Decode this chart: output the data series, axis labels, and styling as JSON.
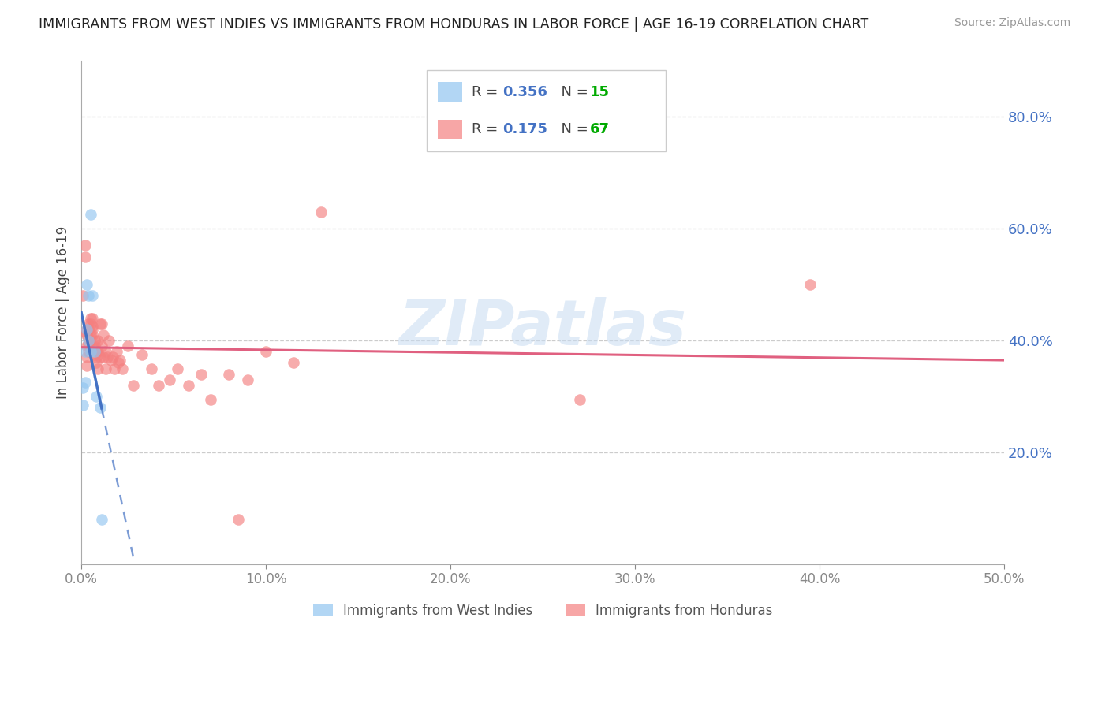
{
  "title": "IMMIGRANTS FROM WEST INDIES VS IMMIGRANTS FROM HONDURAS IN LABOR FORCE | AGE 16-19 CORRELATION CHART",
  "source": "Source: ZipAtlas.com",
  "ylabel": "In Labor Force | Age 16-19",
  "xlim": [
    0.0,
    0.5
  ],
  "ylim": [
    0.0,
    0.9
  ],
  "xticks": [
    0.0,
    0.1,
    0.2,
    0.3,
    0.4,
    0.5
  ],
  "yticks_right": [
    0.2,
    0.4,
    0.6,
    0.8
  ],
  "r_west_indies": 0.356,
  "n_west_indies": 15,
  "r_honduras": 0.175,
  "n_honduras": 67,
  "color_west_indies": "#92C5F0",
  "color_honduras": "#F48080",
  "color_line_west_indies": "#4472C4",
  "color_line_honduras": "#E06080",
  "legend_label_west_indies": "Immigrants from West Indies",
  "legend_label_honduras": "Immigrants from Honduras",
  "west_indies_x": [
    0.001,
    0.001,
    0.002,
    0.002,
    0.003,
    0.003,
    0.004,
    0.004,
    0.005,
    0.005,
    0.006,
    0.007,
    0.008,
    0.01,
    0.011
  ],
  "west_indies_y": [
    0.315,
    0.285,
    0.325,
    0.38,
    0.5,
    0.42,
    0.4,
    0.48,
    0.38,
    0.625,
    0.48,
    0.38,
    0.3,
    0.28,
    0.08
  ],
  "honduras_x": [
    0.001,
    0.002,
    0.002,
    0.002,
    0.003,
    0.003,
    0.003,
    0.003,
    0.003,
    0.004,
    0.004,
    0.004,
    0.004,
    0.004,
    0.005,
    0.005,
    0.005,
    0.005,
    0.006,
    0.006,
    0.006,
    0.006,
    0.006,
    0.007,
    0.007,
    0.007,
    0.008,
    0.008,
    0.008,
    0.009,
    0.009,
    0.009,
    0.01,
    0.01,
    0.011,
    0.011,
    0.012,
    0.012,
    0.013,
    0.013,
    0.014,
    0.015,
    0.016,
    0.017,
    0.018,
    0.019,
    0.02,
    0.021,
    0.022,
    0.025,
    0.028,
    0.033,
    0.038,
    0.042,
    0.048,
    0.052,
    0.058,
    0.065,
    0.07,
    0.08,
    0.085,
    0.09,
    0.1,
    0.115,
    0.13,
    0.27,
    0.395
  ],
  "honduras_y": [
    0.48,
    0.55,
    0.57,
    0.415,
    0.42,
    0.41,
    0.39,
    0.37,
    0.355,
    0.43,
    0.42,
    0.405,
    0.395,
    0.38,
    0.44,
    0.43,
    0.41,
    0.385,
    0.44,
    0.425,
    0.42,
    0.41,
    0.39,
    0.4,
    0.39,
    0.375,
    0.38,
    0.37,
    0.36,
    0.4,
    0.38,
    0.35,
    0.43,
    0.37,
    0.43,
    0.39,
    0.41,
    0.37,
    0.38,
    0.35,
    0.37,
    0.4,
    0.365,
    0.37,
    0.35,
    0.38,
    0.36,
    0.365,
    0.35,
    0.39,
    0.32,
    0.375,
    0.35,
    0.32,
    0.33,
    0.35,
    0.32,
    0.34,
    0.295,
    0.34,
    0.08,
    0.33,
    0.38,
    0.36,
    0.63,
    0.295,
    0.5
  ],
  "watermark_text": "ZIPatlas",
  "background_color": "#ffffff",
  "grid_color": "#cccccc",
  "title_color": "#222222",
  "axis_label_color": "#444444",
  "tick_label_color_right": "#4472C4",
  "tick_label_color_x": "#888888",
  "r_color": "#4472C4",
  "n_color": "#00AA00",
  "legend_box_color": "#cccccc"
}
